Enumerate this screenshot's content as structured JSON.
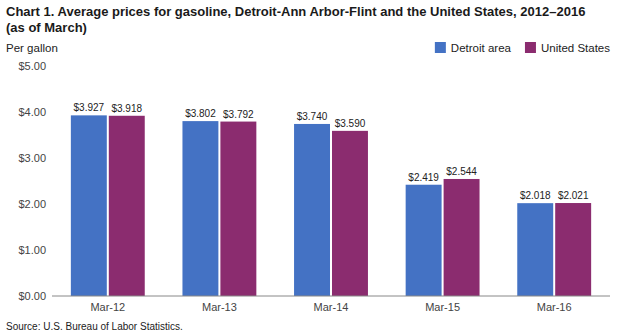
{
  "chart_data": {
    "type": "bar",
    "title": "Chart 1. Average prices for gasoline, Detroit-Ann Arbor-Flint and the United States, 2012–2016",
    "subtitle": "(as of March)",
    "y_label": "Per gallon",
    "annotations": [
      "Source: U.S. Bureau of Labor Statistics."
    ],
    "categories": [
      "Mar-12",
      "Mar-13",
      "Mar-14",
      "Mar-15",
      "Mar-16"
    ],
    "series": [
      {
        "name": "Detroit area",
        "color": "#4472C4",
        "values": [
          3.927,
          3.802,
          3.74,
          2.419,
          2.018
        ],
        "value_labels": [
          "$3.927",
          "$3.802",
          "$3.740",
          "$2.419",
          "$2.018"
        ]
      },
      {
        "name": "United States",
        "color": "#8B2C6F",
        "values": [
          3.918,
          3.792,
          3.59,
          2.544,
          2.021
        ],
        "value_labels": [
          "$3.918",
          "$3.792",
          "$3.590",
          "$2.544",
          "$2.021"
        ]
      }
    ],
    "ylim": [
      0,
      5.0
    ],
    "yticks": [
      {
        "value": 0.0,
        "label": "$0.00"
      },
      {
        "value": 1.0,
        "label": "$1.00"
      },
      {
        "value": 2.0,
        "label": "$2.00"
      },
      {
        "value": 3.0,
        "label": "$3.00"
      },
      {
        "value": 4.0,
        "label": "$4.00"
      },
      {
        "value": 5.0,
        "label": "$5.00"
      }
    ],
    "grid": false,
    "legend": "upper right",
    "data_labels": true
  }
}
